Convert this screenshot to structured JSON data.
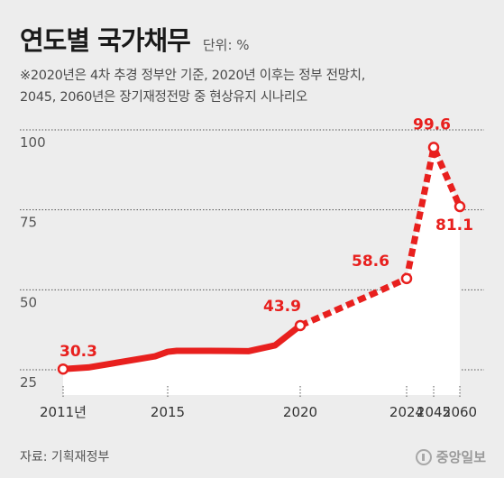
{
  "header": {
    "title": "연도별 국가채무",
    "unit": "단위: %",
    "note_line1": "※2020년은 4차 추경 정부안 기준, 2020년 이후는 정부 전망치,",
    "note_line2": "2045, 2060년은 장기재정전망 중 현상유지 시나리오"
  },
  "footer": {
    "source": "자료: 기획재정부",
    "logo_text": "중앙일보"
  },
  "colors": {
    "line": "#e8201e",
    "area": "#ffffff",
    "grid": "#555555",
    "background": "#ededed"
  },
  "chart_data": {
    "type": "line",
    "title": "연도별 국가채무",
    "ylabel": "",
    "xlabel": "",
    "ylim": [
      25,
      100
    ],
    "yticks": [
      "25",
      "50",
      "75",
      "100"
    ],
    "grid": "horizontal dotted",
    "x": [
      "2011",
      "2012",
      "2013",
      "2014",
      "2015",
      "2016",
      "2017",
      "2018",
      "2019",
      "2020",
      "2021",
      "2022",
      "2023",
      "2024",
      "2045",
      "2060"
    ],
    "values": [
      30.3,
      30.8,
      32.6,
      34.3,
      35.7,
      36.0,
      36.0,
      35.9,
      37.7,
      43.9,
      47.3,
      50.9,
      54.6,
      58.6,
      99.6,
      81.1
    ],
    "projected_from": "2020",
    "xticks": [
      {
        "x": "2011",
        "label": "2011년"
      },
      {
        "x": "2015",
        "label": "2015"
      },
      {
        "x": "2020",
        "label": "2020"
      },
      {
        "x": "2024",
        "label": "2024"
      },
      {
        "x": "2045",
        "label": "2045"
      },
      {
        "x": "2060",
        "label": "2060"
      }
    ],
    "labeled_points": [
      {
        "x": "2011",
        "value": 30.3,
        "label": "30.3"
      },
      {
        "x": "2020",
        "value": 43.9,
        "label": "43.9"
      },
      {
        "x": "2024",
        "value": 58.6,
        "label": "58.6"
      },
      {
        "x": "2045",
        "value": 99.6,
        "label": "99.6"
      },
      {
        "x": "2060",
        "value": 81.1,
        "label": "81.1"
      }
    ]
  }
}
